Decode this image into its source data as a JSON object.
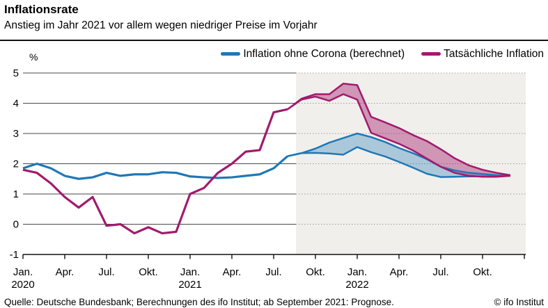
{
  "header": {
    "title": "Inflationsrate",
    "subtitle": "Anstieg im Jahr 2021 vor allem wegen niedriger Preise im Vorjahr"
  },
  "legend": [
    {
      "label": "Inflation ohne Corona (berechnet)",
      "color": "#1e78b6"
    },
    {
      "label": "Tatsächliche Inflation",
      "color": "#a21a6c"
    }
  ],
  "footer": {
    "source": "Quelle: Deutsche Bundesbank; Berechnungen des ifo Institut; ab September 2021: Prognose.",
    "copyright": "© ifo Institut"
  },
  "chart_data": {
    "type": "line",
    "unit_label": "%",
    "ylim": [
      -1,
      5
    ],
    "yticks": [
      5,
      4,
      3,
      2,
      1,
      0,
      -1
    ],
    "grid": true,
    "months_start": "2020-01",
    "months_end": "2022-12",
    "x_ticks": [
      {
        "index": 0,
        "label": "Jan.",
        "year": "2020"
      },
      {
        "index": 3,
        "label": "Apr."
      },
      {
        "index": 6,
        "label": "Jul."
      },
      {
        "index": 9,
        "label": "Okt."
      },
      {
        "index": 12,
        "label": "Jan.",
        "year": "2021"
      },
      {
        "index": 15,
        "label": "Apr."
      },
      {
        "index": 18,
        "label": "Jul."
      },
      {
        "index": 21,
        "label": "Okt."
      },
      {
        "index": 24,
        "label": "Jan.",
        "year": "2022"
      },
      {
        "index": 27,
        "label": "Apr."
      },
      {
        "index": 30,
        "label": "Jul."
      },
      {
        "index": 33,
        "label": "Okt."
      },
      {
        "index": 36,
        "label": ""
      }
    ],
    "forecast_region": {
      "start_index": 19.6,
      "note": "ab September 2021: Prognose",
      "background_color": "#f0efec"
    },
    "series": [
      {
        "name": "Inflation ohne Corona (berechnet)",
        "color": "#1e78b6",
        "band_opacity": 0.33,
        "actual": {
          "start_index": 0,
          "start_month": "2020-01",
          "values": [
            1.85,
            2.0,
            1.85,
            1.6,
            1.5,
            1.55,
            1.7,
            1.6,
            1.65,
            1.65,
            1.72,
            1.7,
            1.58,
            1.55,
            1.53,
            1.55,
            1.6,
            1.65,
            1.85,
            2.25
          ]
        },
        "forecast_upper": {
          "start_index": 20,
          "start_month": "2021-09",
          "values": [
            2.35,
            2.5,
            2.7,
            2.85,
            3.0,
            2.88,
            2.72,
            2.52,
            2.35,
            2.15,
            1.9,
            1.78,
            1.7,
            1.66,
            1.62,
            1.6
          ]
        },
        "forecast_lower": {
          "start_index": 20,
          "start_month": "2021-09",
          "values": [
            2.35,
            2.36,
            2.34,
            2.3,
            2.55,
            2.38,
            2.24,
            2.06,
            1.87,
            1.67,
            1.56,
            1.57,
            1.58,
            1.58,
            1.59,
            1.6
          ]
        }
      },
      {
        "name": "Tatsächliche Inflation",
        "color": "#a21a6c",
        "band_opacity": 0.42,
        "actual": {
          "start_index": 0,
          "start_month": "2020-01",
          "values": [
            1.8,
            1.7,
            1.35,
            0.9,
            0.55,
            0.9,
            -0.05,
            0.0,
            -0.3,
            -0.1,
            -0.3,
            -0.25,
            1.0,
            1.2,
            1.7,
            2.0,
            2.4,
            2.45,
            3.7,
            3.8
          ]
        },
        "forecast_upper": {
          "start_index": 20,
          "start_month": "2021-09",
          "values": [
            4.15,
            4.3,
            4.3,
            4.65,
            4.6,
            3.55,
            3.37,
            3.18,
            2.95,
            2.75,
            2.48,
            2.18,
            1.95,
            1.8,
            1.7,
            1.62
          ]
        },
        "forecast_lower": {
          "start_index": 20,
          "start_month": "2021-09",
          "values": [
            4.12,
            4.22,
            4.08,
            4.3,
            4.12,
            3.02,
            2.84,
            2.66,
            2.44,
            2.17,
            1.9,
            1.7,
            1.6,
            1.57,
            1.57,
            1.6
          ]
        }
      }
    ]
  }
}
